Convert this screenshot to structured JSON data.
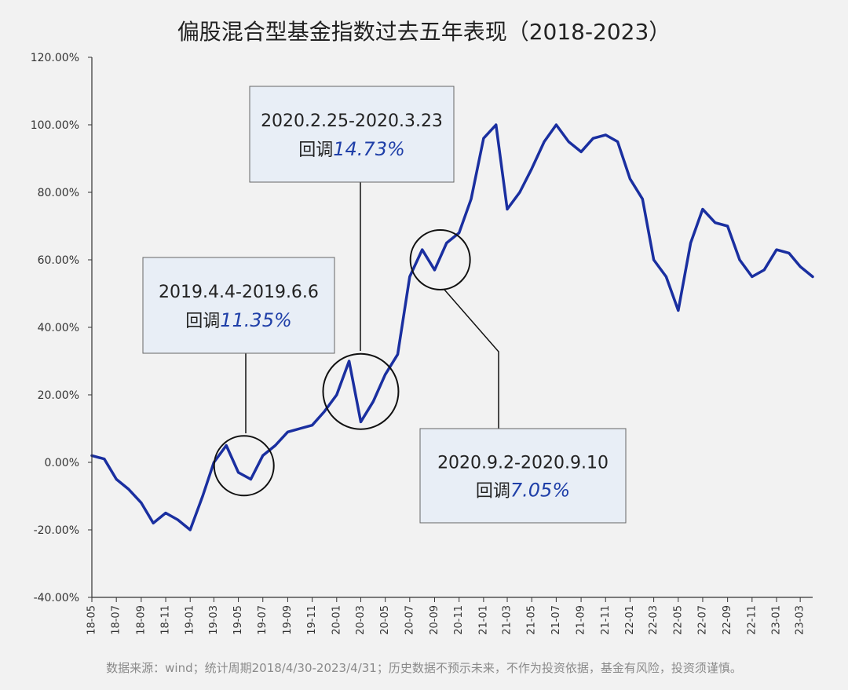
{
  "colors": {
    "background": "#f2f2f2",
    "series": "#1a2fa0",
    "axis": "#333333",
    "callout_fill": "#e8eef6",
    "callout_border": "#666666",
    "callout_pct": "#1f3fa8",
    "source_text": "#8a8a8a"
  },
  "chart_data": {
    "type": "line",
    "title": "偏股混合型基金指数过去五年表现（2018-2023）",
    "xlabel": "",
    "ylabel": "",
    "ylim": [
      -40,
      120
    ],
    "yticks": [
      -40,
      -20,
      0,
      20,
      40,
      60,
      80,
      100,
      120
    ],
    "ytick_labels": [
      "-40.00%",
      "-20.00%",
      "0.00%",
      "20.00%",
      "40.00%",
      "60.00%",
      "80.00%",
      "100.00%",
      "120.00%"
    ],
    "xlim": [
      "2018-05",
      "2023-04"
    ],
    "xtick_labels": [
      "18-05",
      "18-07",
      "18-09",
      "18-11",
      "19-01",
      "19-03",
      "19-05",
      "19-07",
      "19-09",
      "19-11",
      "20-01",
      "20-03",
      "20-05",
      "20-07",
      "20-09",
      "20-11",
      "21-01",
      "21-03",
      "21-05",
      "21-07",
      "21-09",
      "21-11",
      "22-01",
      "22-03",
      "22-05",
      "22-07",
      "22-09",
      "22-11",
      "23-01",
      "23-03"
    ],
    "grid": false,
    "series": [
      {
        "x": [
          "2018-05",
          "2018-06",
          "2018-07",
          "2018-08",
          "2018-09",
          "2018-10",
          "2018-11",
          "2018-12",
          "2019-01",
          "2019-02",
          "2019-03",
          "2019-04",
          "2019-05",
          "2019-06",
          "2019-07",
          "2019-08",
          "2019-09",
          "2019-10",
          "2019-11",
          "2019-12",
          "2020-01",
          "2020-02",
          "2020-03",
          "2020-04",
          "2020-05",
          "2020-06",
          "2020-07",
          "2020-08",
          "2020-09",
          "2020-10",
          "2020-11",
          "2020-12",
          "2021-01",
          "2021-02",
          "2021-03",
          "2021-04",
          "2021-05",
          "2021-06",
          "2021-07",
          "2021-08",
          "2021-09",
          "2021-10",
          "2021-11",
          "2021-12",
          "2022-01",
          "2022-02",
          "2022-03",
          "2022-04",
          "2022-05",
          "2022-06",
          "2022-07",
          "2022-08",
          "2022-09",
          "2022-10",
          "2022-11",
          "2022-12",
          "2023-01",
          "2023-02",
          "2023-03",
          "2023-04"
        ],
        "y": [
          2,
          1,
          -5,
          -8,
          -12,
          -18,
          -15,
          -17,
          -20,
          -10,
          0,
          5,
          -3,
          -5,
          2,
          5,
          9,
          10,
          11,
          15,
          20,
          30,
          12,
          18,
          26,
          32,
          55,
          63,
          57,
          65,
          68,
          78,
          96,
          100,
          75,
          80,
          87,
          95,
          100,
          95,
          92,
          96,
          97,
          95,
          84,
          78,
          60,
          55,
          45,
          65,
          75,
          71,
          70,
          60,
          55,
          57,
          63,
          62,
          58,
          55
        ]
      }
    ],
    "annotations": [
      {
        "period": "2019.4.4-2019.6.6",
        "prefix": "回调",
        "value": "11.35%",
        "circle_x": "2019-05-15",
        "circle_y": -1
      },
      {
        "period": "2020.2.25-2020.3.23",
        "prefix": "回调",
        "value": "14.73%",
        "circle_x": "2020-03-01",
        "circle_y": 21
      },
      {
        "period": "2020.9.2-2020.9.10",
        "prefix": "回调",
        "value": "7.05%",
        "circle_x": "2020-09-15",
        "circle_y": 60
      }
    ]
  },
  "footer": {
    "source": "数据来源：wind；统计周期2018/4/30-2023/4/31；历史数据不预示未来，不作为投资依据，基金有风险，投资须谨慎。"
  }
}
